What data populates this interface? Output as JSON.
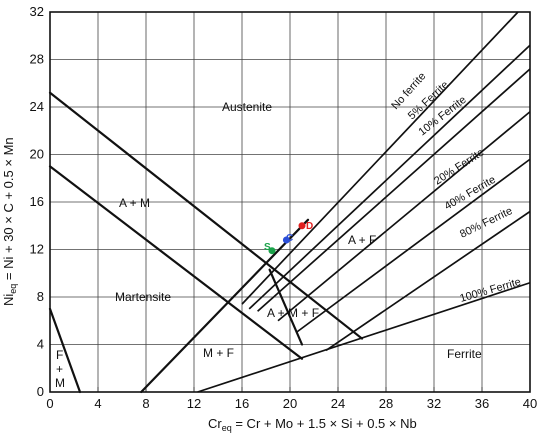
{
  "chart_data": {
    "type": "diagram",
    "x_axis": {
      "label_parts": [
        "Cr",
        "eq",
        " = Cr + Mo + 1.5 × Si + 0.5 × Nb"
      ],
      "ticks": [
        "0",
        "4",
        "8",
        "12",
        "16",
        "20",
        "24",
        "28",
        "32",
        "36",
        "40"
      ],
      "range": [
        0,
        40
      ]
    },
    "y_axis": {
      "label_parts": [
        "Ni",
        "eq",
        " = Ni + 30 × C + 0.5 × Mn"
      ],
      "ticks": [
        "0",
        "4",
        "8",
        "12",
        "16",
        "20",
        "24",
        "28",
        "32"
      ],
      "range": [
        0,
        32
      ]
    },
    "grid": true,
    "regions": {
      "austenite": "Austenite",
      "a_m": "A + M",
      "martensite": "Martensite",
      "a_f": "A + F",
      "a_m_f": "A + M + F",
      "m_f": "M + F",
      "ferrite": "Ferrite",
      "f_m_top": "F",
      "f_m_mid": "+",
      "f_m_bot": "M"
    },
    "ferrite_lines": [
      {
        "label": "No ferrite",
        "p1": [
          16.0,
          7.4
        ],
        "p2": [
          39.0,
          32.0
        ]
      },
      {
        "label": "5% Ferrite",
        "p1": [
          16.6,
          7.0
        ],
        "p2": [
          40.0,
          29.2
        ]
      },
      {
        "label": "10% Ferrite",
        "p1": [
          17.3,
          6.8
        ],
        "p2": [
          40.0,
          27.2
        ]
      },
      {
        "label": "20% Ferrite",
        "p1": [
          19.0,
          6.0
        ],
        "p2": [
          40.0,
          23.6
        ]
      },
      {
        "label": "40% Ferrite",
        "p1": [
          20.5,
          5.0
        ],
        "p2": [
          40.0,
          19.6
        ]
      },
      {
        "label": "80% Ferrite",
        "p1": [
          23.0,
          3.5
        ],
        "p2": [
          40.0,
          15.2
        ]
      },
      {
        "label": "100% Ferrite",
        "p1": [
          12.3,
          0.0
        ],
        "p2": [
          40.0,
          9.2
        ]
      }
    ],
    "boundaries": [
      {
        "p1": [
          0,
          25.2
        ],
        "p2": [
          26.0,
          4.5
        ]
      },
      {
        "p1": [
          0,
          19.0
        ],
        "p2": [
          21.0,
          2.8
        ]
      },
      {
        "p1": [
          7.6,
          0
        ],
        "p2": [
          21.5,
          14.5
        ]
      },
      {
        "p1": [
          0,
          7.0
        ],
        "p2": [
          2.5,
          0
        ]
      },
      {
        "p1": [
          18.3,
          10.3
        ],
        "p2": [
          21.0,
          4.0
        ]
      }
    ],
    "points": [
      {
        "label": "S",
        "x": 18.5,
        "y": 11.9,
        "color": "#1aa34a"
      },
      {
        "label": "C",
        "x": 19.7,
        "y": 12.8,
        "color": "#2b4fd8"
      },
      {
        "label": "D",
        "x": 21.0,
        "y": 14.0,
        "color": "#e02020"
      }
    ],
    "colors": {
      "line": "#111111",
      "grid": "#444444"
    }
  }
}
